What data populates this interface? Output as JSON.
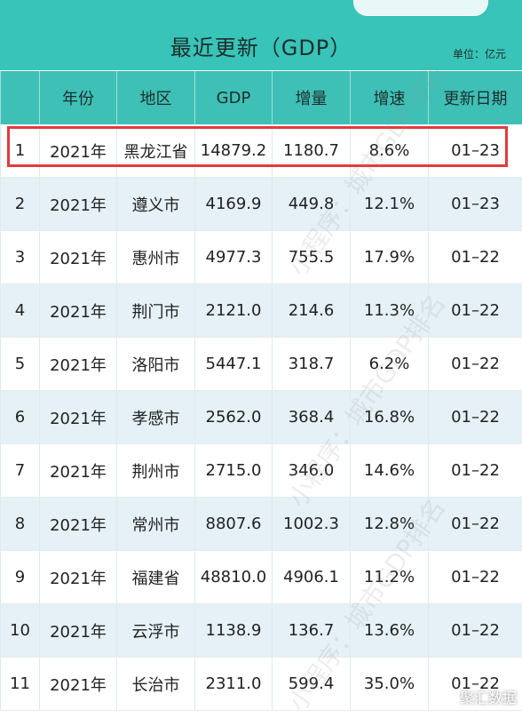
{
  "header": {
    "title": "最近更新（GDP）",
    "unit_label": "单位：亿元"
  },
  "table": {
    "columns": [
      "",
      "年份",
      "地区",
      "GDP",
      "增量",
      "增速",
      "更新日期"
    ],
    "rows": [
      {
        "rank": "1",
        "year": "2021年",
        "region": "黑龙江省",
        "gdp": "14879.2",
        "increase": "1180.7",
        "growth": "8.6%",
        "date": "01–23"
      },
      {
        "rank": "2",
        "year": "2021年",
        "region": "遵义市",
        "gdp": "4169.9",
        "increase": "449.8",
        "growth": "12.1%",
        "date": "01–23"
      },
      {
        "rank": "3",
        "year": "2021年",
        "region": "惠州市",
        "gdp": "4977.3",
        "increase": "755.5",
        "growth": "17.9%",
        "date": "01–22"
      },
      {
        "rank": "4",
        "year": "2021年",
        "region": "荆门市",
        "gdp": "2121.0",
        "increase": "214.6",
        "growth": "11.3%",
        "date": "01–22"
      },
      {
        "rank": "5",
        "year": "2021年",
        "region": "洛阳市",
        "gdp": "5447.1",
        "increase": "318.7",
        "growth": "6.2%",
        "date": "01–22"
      },
      {
        "rank": "6",
        "year": "2021年",
        "region": "孝感市",
        "gdp": "2562.0",
        "increase": "368.4",
        "growth": "16.8%",
        "date": "01–22"
      },
      {
        "rank": "7",
        "year": "2021年",
        "region": "荆州市",
        "gdp": "2715.0",
        "increase": "346.0",
        "growth": "14.6%",
        "date": "01–22"
      },
      {
        "rank": "8",
        "year": "2021年",
        "region": "常州市",
        "gdp": "8807.6",
        "increase": "1002.3",
        "growth": "12.8%",
        "date": "01–22"
      },
      {
        "rank": "9",
        "year": "2021年",
        "region": "福建省",
        "gdp": "48810.0",
        "increase": "4906.1",
        "growth": "11.2%",
        "date": "01–22"
      },
      {
        "rank": "10",
        "year": "2021年",
        "region": "云浮市",
        "gdp": "1138.9",
        "increase": "136.7",
        "growth": "13.6%",
        "date": "01–22"
      },
      {
        "rank": "11",
        "year": "2021年",
        "region": "长治市",
        "gdp": "2311.0",
        "increase": "599.4",
        "growth": "35.0%",
        "date": "01–22"
      }
    ]
  },
  "watermark": "小程序：城市GDP排名",
  "corner_logo": "聚汇数据",
  "colors": {
    "header_bg": "#38c4b8",
    "row_alt_bg": "#e5f1f7",
    "highlight_border": "#e23b3b"
  }
}
